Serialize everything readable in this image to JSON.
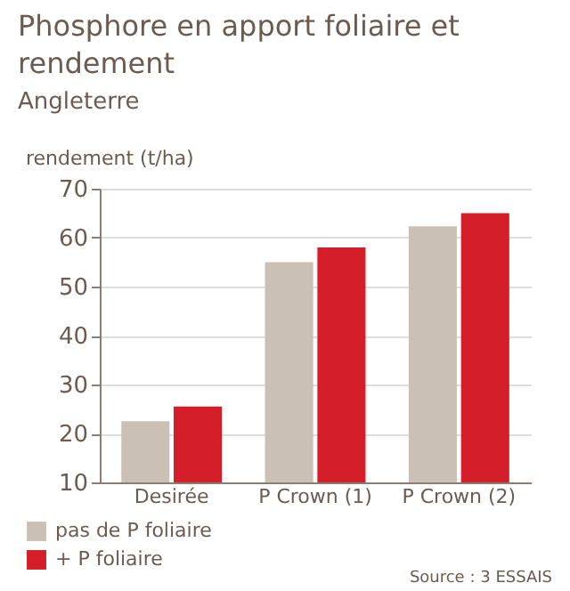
{
  "chart_data": {
    "type": "bar",
    "title": "Phosphore en apport foliaire et rendement",
    "subtitle": "Angleterre",
    "ylabel": "rendement (t/ha)",
    "categories": [
      "Desirée",
      "P Crown (1)",
      "P Crown (2)"
    ],
    "series": [
      {
        "name": "pas de P foliaire",
        "color": "#cbc0b4",
        "values": [
          22.5,
          55,
          62.3
        ]
      },
      {
        "name": "+ P foliaire",
        "color": "#d41f2a",
        "values": [
          25.5,
          58,
          65
        ]
      }
    ],
    "ylim": [
      10,
      70
    ],
    "yticks": [
      10,
      20,
      30,
      40,
      50,
      60,
      70
    ],
    "grid": "y",
    "legend": "bottom left",
    "annotations": [
      "Source : 3 ESSAIS"
    ]
  }
}
